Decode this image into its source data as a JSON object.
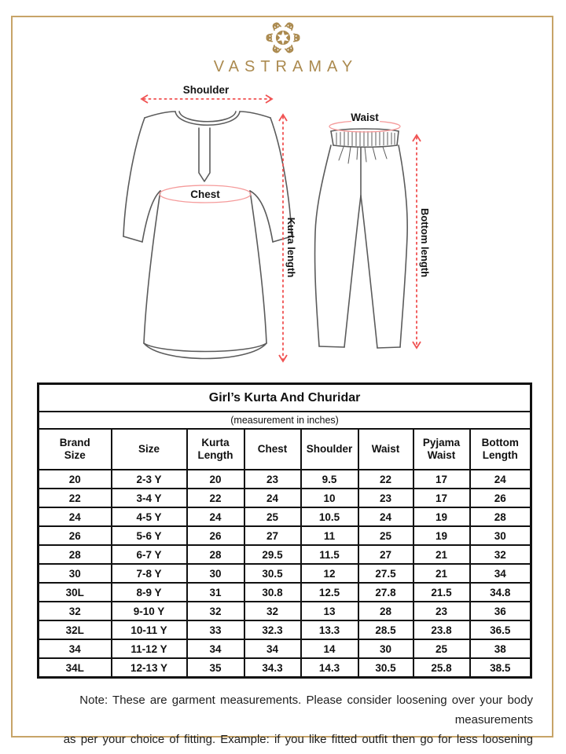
{
  "brand": {
    "name": "VASTRAMAY",
    "logo_icon": "ornamental-star"
  },
  "colors": {
    "gold": "#ab8a4f",
    "frame_gold": "#c7a468",
    "arrow_red": "#f05252",
    "ellipse_red": "#f59b9b",
    "drawing_gray": "#5b5b5b",
    "table_border": "#111111"
  },
  "diagram": {
    "labels": {
      "shoulder": "Shoulder",
      "chest": "Chest",
      "kurta_length": "Kurta length",
      "waist": "Waist",
      "bottom_length": "Bottom length"
    }
  },
  "size_chart": {
    "title": "Girl’s Kurta And Churidar",
    "subtitle": "(measurement in inches)",
    "headers": [
      "Brand\nSize",
      "Size",
      "Kurta\nLength",
      "Chest",
      "Shoulder",
      "Waist",
      "Pyjama\nWaist",
      "Bottom\nLength"
    ],
    "rows": [
      [
        "20",
        "2-3 Y",
        "20",
        "23",
        "9.5",
        "22",
        "17",
        "24"
      ],
      [
        "22",
        "3-4 Y",
        "22",
        "24",
        "10",
        "23",
        "17",
        "26"
      ],
      [
        "24",
        "4-5 Y",
        "24",
        "25",
        "10.5",
        "24",
        "19",
        "28"
      ],
      [
        "26",
        "5-6 Y",
        "26",
        "27",
        "11",
        "25",
        "19",
        "30"
      ],
      [
        "28",
        "6-7 Y",
        "28",
        "29.5",
        "11.5",
        "27",
        "21",
        "32"
      ],
      [
        "30",
        "7-8 Y",
        "30",
        "30.5",
        "12",
        "27.5",
        "21",
        "34"
      ],
      [
        "30L",
        "8-9 Y",
        "31",
        "30.8",
        "12.5",
        "27.8",
        "21.5",
        "34.8"
      ],
      [
        "32",
        "9-10 Y",
        "32",
        "32",
        "13",
        "28",
        "23",
        "36"
      ],
      [
        "32L",
        "10-11 Y",
        "33",
        "32.3",
        "13.3",
        "28.5",
        "23.8",
        "36.5"
      ],
      [
        "34",
        "11-12 Y",
        "34",
        "34",
        "14",
        "30",
        "25",
        "38"
      ],
      [
        "34L",
        "12-13 Y",
        "35",
        "34.3",
        "14.3",
        "30.5",
        "25.8",
        "38.5"
      ]
    ]
  },
  "note": {
    "line1": "Note: These are garment measurements. Please consider loosening over your body measurements",
    "line2": "as per your choice of fitting. Example: if you like fitted outfit then go for less loosening"
  }
}
